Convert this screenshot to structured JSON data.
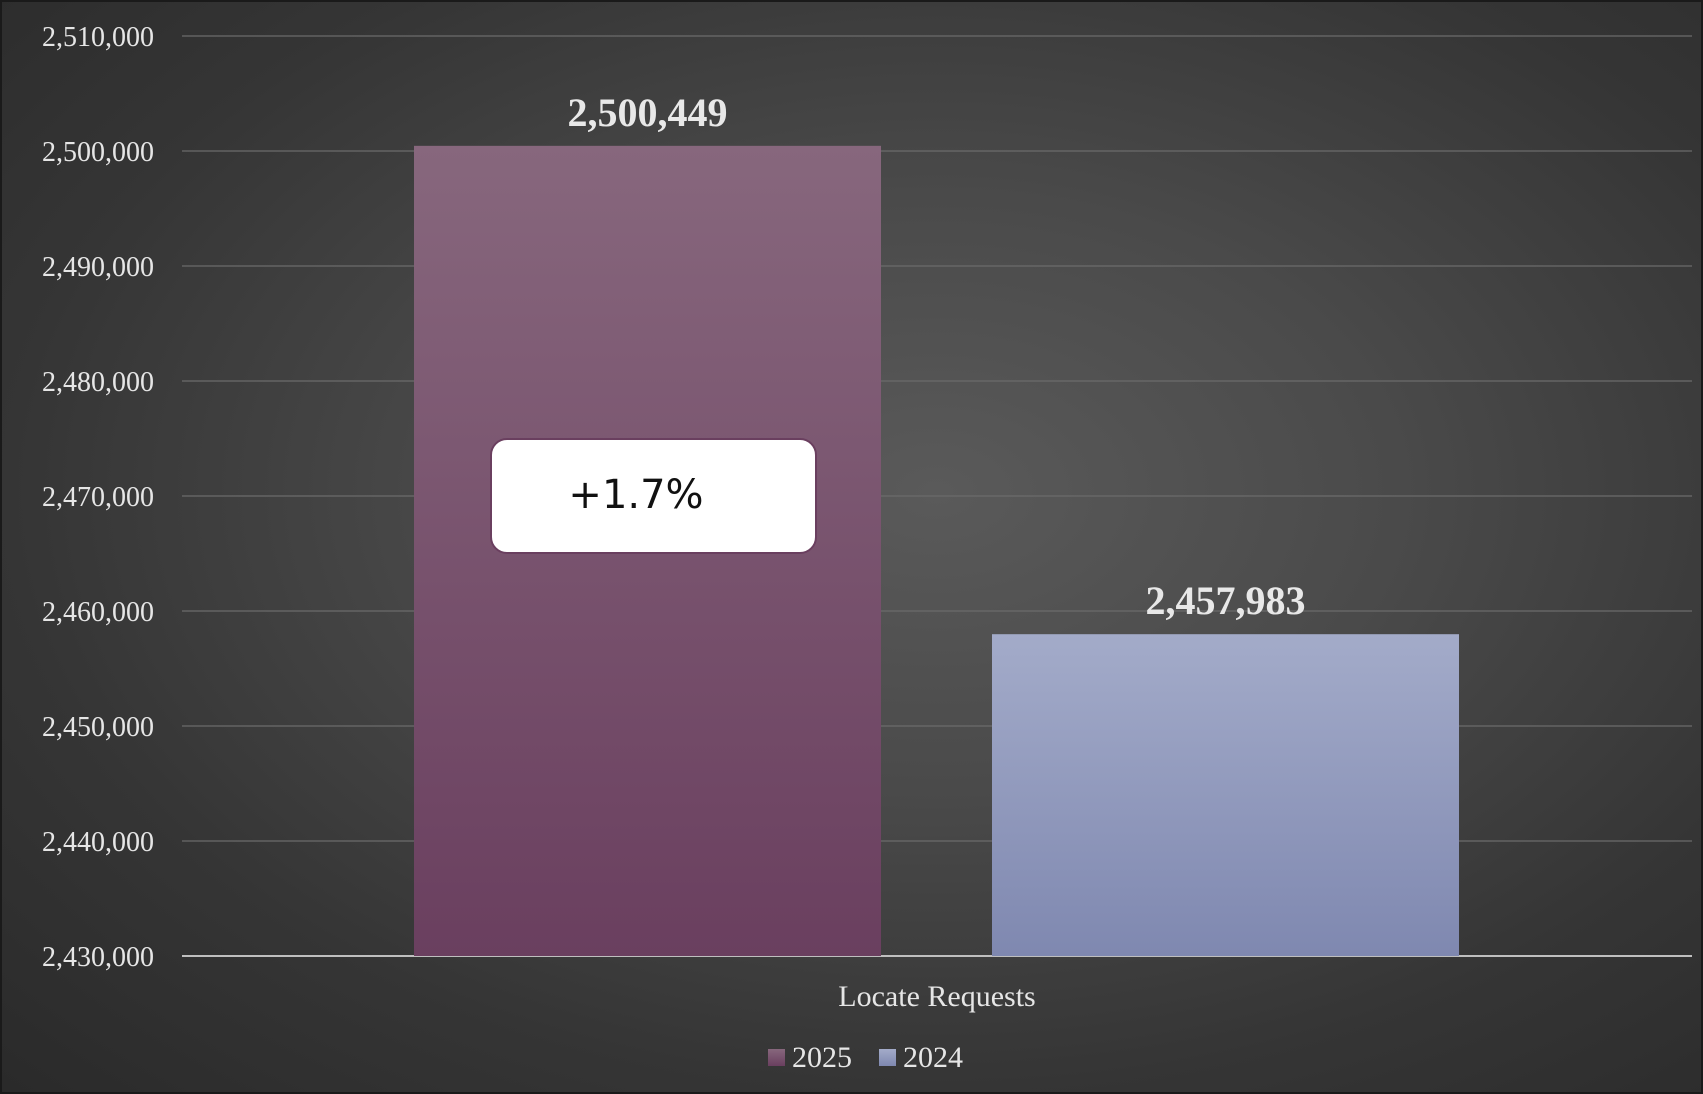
{
  "chart_data": {
    "type": "bar",
    "categories": [
      "Locate Requests"
    ],
    "series": [
      {
        "name": "2025",
        "values": [
          2500449
        ],
        "color": "#7a4d6e"
      },
      {
        "name": "2024",
        "values": [
          2457983
        ],
        "color": "#95a0c4"
      }
    ],
    "data_labels": [
      "2,500,449",
      "2,457,983"
    ],
    "ylim": [
      2430000,
      2510000
    ],
    "y_ticks": [
      2430000,
      2440000,
      2450000,
      2460000,
      2470000,
      2480000,
      2490000,
      2500000,
      2510000
    ],
    "y_tick_labels": [
      "2,430,000",
      "2,440,000",
      "2,450,000",
      "2,460,000",
      "2,470,000",
      "2,480,000",
      "2,490,000",
      "2,500,000",
      "2,510,000"
    ],
    "grid": true,
    "legend_position": "bottom",
    "annotation": "+1.7%"
  }
}
